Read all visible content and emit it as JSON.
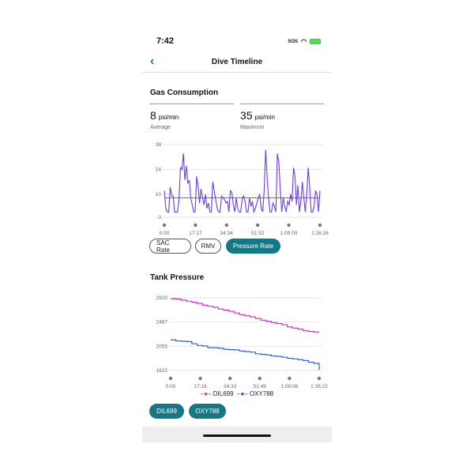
{
  "status": {
    "time": "7:42",
    "sos": "SOS"
  },
  "nav": {
    "title": "Dive Timeline",
    "back": "‹"
  },
  "gas": {
    "title": "Gas Consumption",
    "average": {
      "value": "8",
      "unit": "psi/min",
      "label": "Average"
    },
    "maximum": {
      "value": "35",
      "unit": "psi/min",
      "label": "Maximum"
    },
    "buttons": [
      "SAC Rate",
      "RMV",
      "Pressure Rate"
    ],
    "selected": "Pressure Rate"
  },
  "tank": {
    "title": "Tank Pressure",
    "buttons": [
      "DIL699",
      "OXY788"
    ]
  },
  "chart_data": [
    {
      "type": "line",
      "title": "Gas Consumption",
      "yticks": [
        "38",
        "24",
        "10",
        "-3"
      ],
      "ylim": [
        -3,
        38
      ],
      "xticks": [
        "0:00",
        "17:17",
        "34:34",
        "51:52",
        "1:09:09",
        "1:26:26"
      ],
      "xlim_minutes": [
        0,
        86.43
      ],
      "average_line": 8,
      "grid": true,
      "color": "#6a3de8",
      "values": [
        12,
        2,
        0,
        0,
        14,
        9,
        9,
        0,
        0,
        0,
        7,
        25,
        24,
        33,
        18,
        26,
        16,
        18,
        8,
        4,
        0,
        0,
        20,
        15,
        5,
        13,
        8,
        4,
        10,
        2,
        5,
        0,
        0,
        17,
        12,
        7,
        2,
        0,
        0,
        9,
        8,
        7,
        5,
        6,
        0,
        12,
        11,
        4,
        0,
        8,
        2,
        0,
        0,
        7,
        9,
        6,
        0,
        0,
        8,
        3,
        6,
        0,
        2,
        5,
        8,
        10,
        2,
        0,
        12,
        35,
        20,
        8,
        0,
        0,
        5,
        3,
        0,
        33,
        28,
        12,
        0,
        8,
        3,
        0,
        6,
        4,
        10,
        6,
        25,
        20,
        4,
        15,
        0,
        6,
        17,
        8,
        0,
        10,
        25,
        14,
        0,
        0,
        3,
        12,
        10,
        0,
        12
      ]
    },
    {
      "type": "line",
      "title": "Tank Pressure",
      "yticks": [
        "2920",
        "2487",
        "2055",
        "1622"
      ],
      "ylim": [
        1622,
        2920
      ],
      "xticks": [
        "0:00",
        "17:16",
        "34:33",
        "51:49",
        "1:09:06",
        "1:26:22"
      ],
      "xlim_minutes": [
        0,
        86.37
      ],
      "grid": true,
      "legend": "bottom",
      "series": [
        {
          "name": "DIL699",
          "color": "#d020c8",
          "values": [
            2905,
            2900,
            2880,
            2860,
            2840,
            2820,
            2790,
            2770,
            2750,
            2720,
            2700,
            2680,
            2650,
            2620,
            2600,
            2580,
            2550,
            2520,
            2500,
            2480,
            2460,
            2440,
            2400,
            2380,
            2360,
            2330,
            2320,
            2310,
            2310
          ]
        },
        {
          "name": "OXY788",
          "color": "#1a56c8",
          "values": [
            2170,
            2150,
            2145,
            2140,
            2100,
            2070,
            2060,
            2030,
            2030,
            2020,
            2000,
            1995,
            1990,
            1970,
            1960,
            1950,
            1920,
            1910,
            1900,
            1880,
            1875,
            1860,
            1840,
            1830,
            1815,
            1800,
            1770,
            1750,
            1630
          ]
        }
      ]
    }
  ]
}
